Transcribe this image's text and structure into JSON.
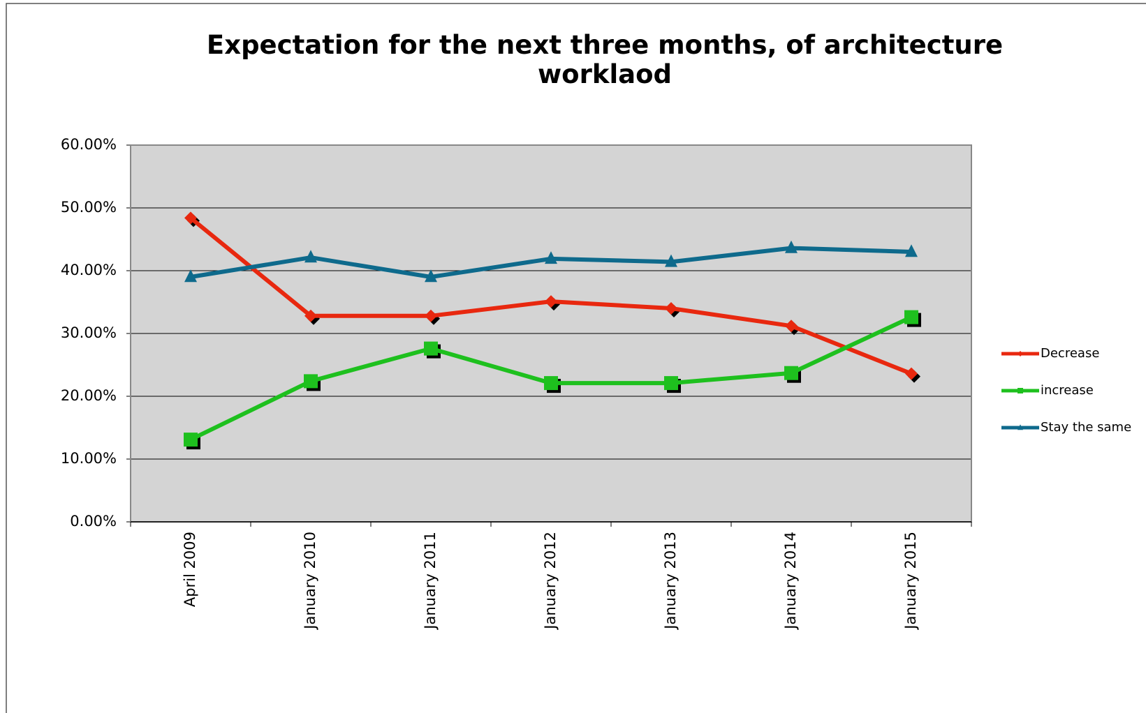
{
  "chart_data": {
    "type": "line",
    "title": "Expectation for the next three months, of architecture worklaod",
    "categories": [
      "April 2009",
      "January 2010",
      "January 2011",
      "January 2012",
      "January 2013",
      "January 2014",
      "January 2015"
    ],
    "series": [
      {
        "name": "Decrease",
        "color": "#e8280f",
        "marker": "diamond",
        "values": [
          48.4,
          32.8,
          32.8,
          35.1,
          34.0,
          31.2,
          23.6
        ]
      },
      {
        "name": "increase",
        "color": "#1ec01e",
        "marker": "square",
        "values": [
          13.1,
          22.4,
          27.6,
          22.1,
          22.1,
          23.7,
          32.6
        ]
      },
      {
        "name": "Stay the same",
        "color": "#0e6a8c",
        "marker": "triangle",
        "values": [
          39.0,
          42.1,
          39.0,
          41.9,
          41.4,
          43.6,
          43.0
        ]
      }
    ],
    "ylim": [
      0,
      60
    ],
    "yticks": [
      {
        "value": 0,
        "label": "0.00%"
      },
      {
        "value": 10,
        "label": "10.00%"
      },
      {
        "value": 20,
        "label": "20.00%"
      },
      {
        "value": 30,
        "label": "30.00%"
      },
      {
        "value": 40,
        "label": "40.00%"
      },
      {
        "value": 50,
        "label": "50.00%"
      },
      {
        "value": 60,
        "label": "60.00%"
      }
    ],
    "grid": true,
    "legend": "right"
  }
}
